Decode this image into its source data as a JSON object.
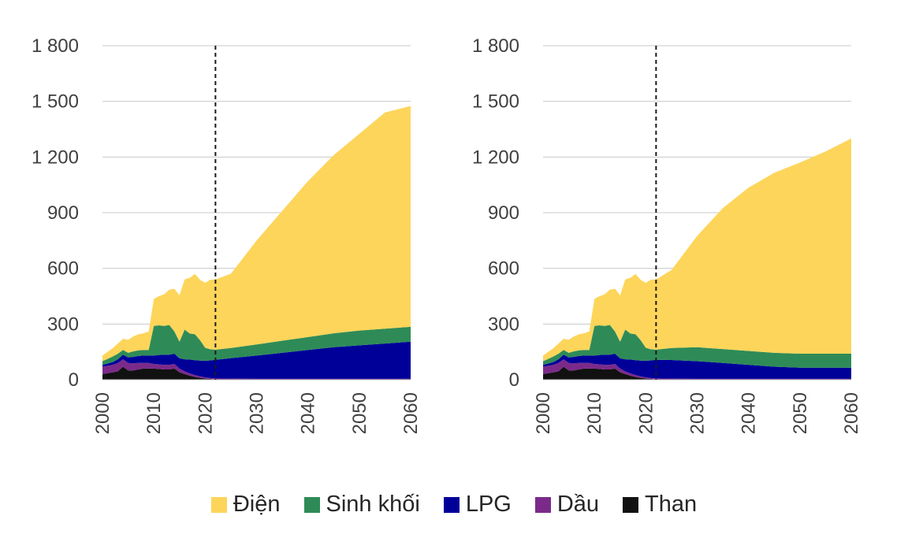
{
  "chart_data": [
    {
      "type": "area",
      "stacked": true,
      "x": [
        2000,
        2001,
        2002,
        2003,
        2004,
        2005,
        2006,
        2007,
        2008,
        2009,
        2010,
        2011,
        2012,
        2013,
        2014,
        2015,
        2016,
        2017,
        2018,
        2019,
        2020,
        2021,
        2022,
        2025,
        2030,
        2035,
        2040,
        2045,
        2050,
        2055,
        2060
      ],
      "ylim": [
        0,
        1800
      ],
      "yticks": [
        0,
        300,
        600,
        900,
        1200,
        1500,
        1800
      ],
      "ytick_labels": [
        "0",
        "300",
        "600",
        "900",
        "1 200",
        "1 500",
        "1 800"
      ],
      "xticks": [
        2000,
        2010,
        2020,
        2030,
        2040,
        2050,
        2060
      ],
      "xtick_labels": [
        "2000",
        "2010",
        "2020",
        "2030",
        "2040",
        "2050",
        "2060"
      ],
      "divider_x": 2022,
      "series": [
        {
          "name": "Than",
          "color": "#111111",
          "values": [
            30,
            35,
            40,
            45,
            70,
            50,
            50,
            55,
            60,
            60,
            60,
            58,
            55,
            55,
            60,
            40,
            30,
            22,
            15,
            10,
            6,
            4,
            2,
            1,
            0,
            0,
            0,
            0,
            0,
            0,
            0
          ]
        },
        {
          "name": "Dầu",
          "color": "#7b2a8a",
          "values": [
            40,
            40,
            40,
            45,
            40,
            40,
            38,
            35,
            30,
            30,
            25,
            25,
            25,
            25,
            25,
            20,
            15,
            12,
            10,
            8,
            6,
            5,
            5,
            5,
            5,
            5,
            5,
            5,
            5,
            5,
            5
          ]
        },
        {
          "name": "LPG",
          "color": "#000099",
          "values": [
            10,
            12,
            15,
            20,
            25,
            30,
            35,
            38,
            40,
            40,
            45,
            50,
            55,
            55,
            55,
            55,
            65,
            75,
            80,
            85,
            90,
            95,
            100,
            110,
            125,
            140,
            155,
            170,
            180,
            190,
            200
          ]
        },
        {
          "name": "Sinh khối",
          "color": "#2e8b57",
          "values": [
            20,
            25,
            30,
            30,
            25,
            25,
            30,
            30,
            30,
            30,
            160,
            160,
            155,
            160,
            120,
            90,
            160,
            140,
            140,
            110,
            70,
            60,
            55,
            55,
            60,
            65,
            70,
            75,
            80,
            80,
            80
          ]
        },
        {
          "name": "Điện",
          "color": "#fdd55a",
          "values": [
            30,
            38,
            45,
            55,
            60,
            70,
            80,
            87,
            90,
            100,
            145,
            157,
            170,
            190,
            230,
            250,
            270,
            300,
            325,
            325,
            350,
            375,
            378,
            400,
            560,
            700,
            840,
            960,
            1060,
            1165,
            1190
          ]
        }
      ]
    },
    {
      "type": "area",
      "stacked": true,
      "x": [
        2000,
        2001,
        2002,
        2003,
        2004,
        2005,
        2006,
        2007,
        2008,
        2009,
        2010,
        2011,
        2012,
        2013,
        2014,
        2015,
        2016,
        2017,
        2018,
        2019,
        2020,
        2021,
        2022,
        2025,
        2030,
        2035,
        2040,
        2045,
        2050,
        2055,
        2060
      ],
      "ylim": [
        0,
        1800
      ],
      "yticks": [
        0,
        300,
        600,
        900,
        1200,
        1500,
        1800
      ],
      "ytick_labels": [
        "0",
        "300",
        "600",
        "900",
        "1 200",
        "1 500",
        "1 800"
      ],
      "xticks": [
        2000,
        2010,
        2020,
        2030,
        2040,
        2050,
        2060
      ],
      "xtick_labels": [
        "2000",
        "2010",
        "2020",
        "2030",
        "2040",
        "2050",
        "2060"
      ],
      "divider_x": 2022,
      "series": [
        {
          "name": "Than",
          "color": "#111111",
          "values": [
            30,
            35,
            40,
            45,
            70,
            50,
            50,
            55,
            60,
            60,
            60,
            58,
            55,
            55,
            60,
            40,
            30,
            22,
            15,
            10,
            6,
            4,
            2,
            1,
            0,
            0,
            0,
            0,
            0,
            0,
            0
          ]
        },
        {
          "name": "Dầu",
          "color": "#7b2a8a",
          "values": [
            40,
            40,
            40,
            45,
            40,
            40,
            38,
            35,
            30,
            30,
            25,
            25,
            25,
            25,
            25,
            20,
            15,
            12,
            10,
            8,
            6,
            5,
            5,
            5,
            5,
            5,
            5,
            5,
            5,
            5,
            5
          ]
        },
        {
          "name": "LPG",
          "color": "#000099",
          "values": [
            10,
            12,
            15,
            20,
            25,
            30,
            35,
            38,
            40,
            40,
            45,
            50,
            55,
            55,
            55,
            55,
            65,
            75,
            80,
            85,
            90,
            95,
            100,
            100,
            95,
            85,
            75,
            65,
            60,
            60,
            60
          ]
        },
        {
          "name": "Sinh khối",
          "color": "#2e8b57",
          "values": [
            20,
            25,
            30,
            30,
            25,
            25,
            30,
            30,
            30,
            30,
            160,
            160,
            155,
            160,
            120,
            90,
            160,
            140,
            140,
            110,
            70,
            60,
            55,
            65,
            75,
            75,
            75,
            75,
            75,
            75,
            75
          ]
        },
        {
          "name": "Điện",
          "color": "#fdd55a",
          "values": [
            30,
            38,
            45,
            55,
            60,
            70,
            80,
            87,
            90,
            100,
            145,
            157,
            170,
            190,
            230,
            250,
            270,
            300,
            325,
            325,
            350,
            375,
            378,
            420,
            600,
            760,
            880,
            970,
            1030,
            1090,
            1160
          ]
        }
      ]
    }
  ],
  "legend": [
    {
      "label": "Điện",
      "color": "#fdd55a"
    },
    {
      "label": "Sinh khối",
      "color": "#2e8b57"
    },
    {
      "label": "LPG",
      "color": "#000099"
    },
    {
      "label": "Dầu",
      "color": "#7b2a8a"
    },
    {
      "label": "Than",
      "color": "#111111"
    }
  ]
}
